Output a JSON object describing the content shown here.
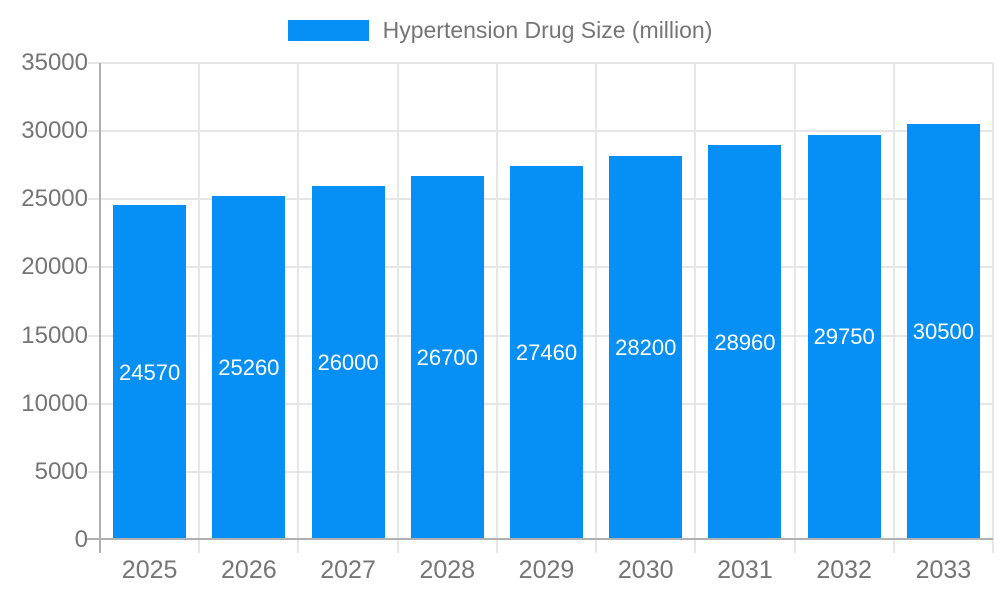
{
  "legend": {
    "label": "Hypertension Drug Size (million)"
  },
  "chart_data": {
    "type": "bar",
    "title": "Hypertension Drug Size (million)",
    "categories": [
      "2025",
      "2026",
      "2027",
      "2028",
      "2029",
      "2030",
      "2031",
      "2032",
      "2033"
    ],
    "values": [
      24570,
      25260,
      26000,
      26700,
      27460,
      28200,
      28960,
      29750,
      30500
    ],
    "xlabel": "",
    "ylabel": "",
    "ylim": [
      0,
      35000
    ],
    "yticks": [
      0,
      5000,
      10000,
      15000,
      20000,
      25000,
      30000,
      35000
    ],
    "grid": true,
    "legend_position": "top",
    "value_labels": "inside-middle",
    "colors": {
      "bar": "#0690f6",
      "grid": "#e6e6e6",
      "axis": "#b0b0b0",
      "tick_label": "#757575",
      "value_label": "#ffffff",
      "background": "#ffffff"
    }
  }
}
